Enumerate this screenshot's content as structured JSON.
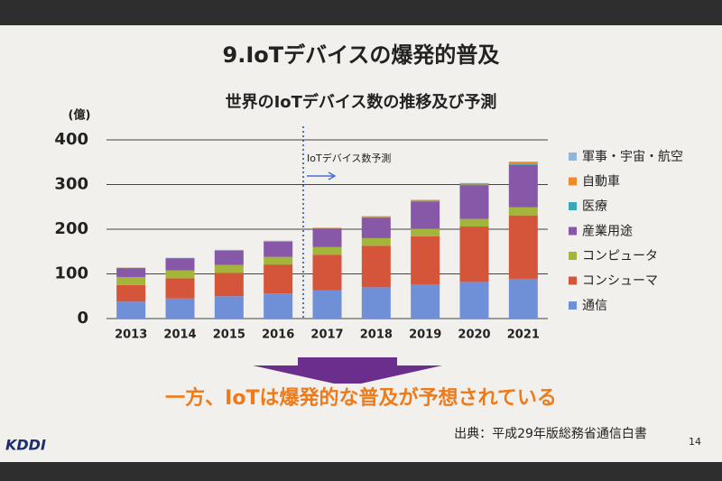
{
  "slide_title": "9.IoTデバイスの爆発的普及",
  "message": "一方、IoTは爆発的な普及が予想されている",
  "source": "出典：平成29年版総務省通信白書",
  "page_number": "14",
  "logo": "KDDI",
  "chart_data": {
    "type": "stacked-bar",
    "title": "世界のIoTデバイス数の推移及び予測",
    "y_unit": "(億)",
    "annotation": "IoTデバイス数予測",
    "categories": [
      "2013",
      "2014",
      "2015",
      "2016",
      "2017",
      "2018",
      "2019",
      "2020",
      "2021"
    ],
    "series": [
      {
        "name": "通信",
        "color": "#6f8fd6",
        "values": [
          38,
          45,
          50,
          56,
          63,
          70,
          76,
          82,
          89
        ]
      },
      {
        "name": "コンシューマ",
        "color": "#d4553a",
        "values": [
          37,
          45,
          52,
          65,
          80,
          93,
          108,
          124,
          142
        ]
      },
      {
        "name": "コンピュータ",
        "color": "#a4b63a",
        "values": [
          18,
          18,
          18,
          17,
          17,
          17,
          17,
          17,
          18
        ]
      },
      {
        "name": "産業用途",
        "color": "#8757a8",
        "values": [
          20,
          27,
          32,
          34,
          41,
          46,
          61,
          75,
          95
        ]
      },
      {
        "name": "医療",
        "color": "#3aa6b6",
        "values": [
          0.5,
          0.5,
          0.5,
          1,
          1,
          1,
          1.5,
          2,
          3
        ]
      },
      {
        "name": "自動車",
        "color": "#ee8a2a",
        "values": [
          0.5,
          0.5,
          1,
          1,
          1,
          2,
          2,
          3,
          4
        ]
      },
      {
        "name": "軍事・宇宙・航空",
        "color": "#8fb6dc",
        "values": [
          0.3,
          0.3,
          0.3,
          0.3,
          0.3,
          0.4,
          0.4,
          0.4,
          0.5
        ]
      }
    ],
    "ylim": [
      0,
      400
    ],
    "yticks": [
      0,
      100,
      200,
      300,
      400
    ],
    "grid": true,
    "legend": "right"
  }
}
